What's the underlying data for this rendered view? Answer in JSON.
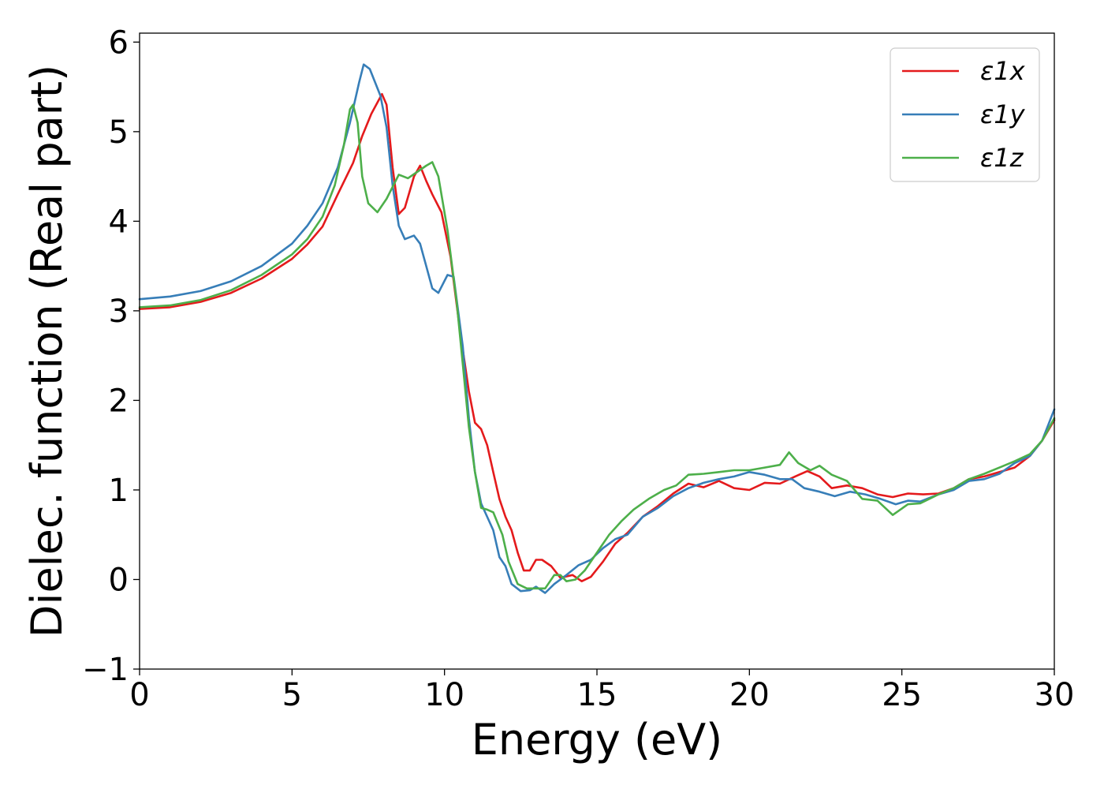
{
  "chart_data": {
    "type": "line",
    "title": "",
    "xlabel": "Energy (eV)",
    "ylabel": "Dielec. function (Real part)",
    "xlim": [
      0,
      30
    ],
    "ylim": [
      -1,
      6.1
    ],
    "xticks": [
      0,
      5,
      10,
      15,
      20,
      25,
      30
    ],
    "yticks": [
      -1,
      0,
      1,
      2,
      3,
      4,
      5,
      6
    ],
    "xtick_labels": [
      "0",
      "5",
      "10",
      "15",
      "20",
      "25",
      "30"
    ],
    "ytick_labels": [
      "−1",
      "0",
      "1",
      "2",
      "3",
      "4",
      "5",
      "6"
    ],
    "grid": false,
    "legend_position": "top-right",
    "series": [
      {
        "name": "ε1x",
        "color": "#e41a1c",
        "points": [
          [
            0,
            3.02
          ],
          [
            1,
            3.04
          ],
          [
            2,
            3.1
          ],
          [
            3,
            3.2
          ],
          [
            4,
            3.36
          ],
          [
            5,
            3.58
          ],
          [
            5.5,
            3.74
          ],
          [
            6,
            3.94
          ],
          [
            6.5,
            4.3
          ],
          [
            7,
            4.65
          ],
          [
            7.3,
            4.95
          ],
          [
            7.6,
            5.2
          ],
          [
            7.95,
            5.42
          ],
          [
            8.1,
            5.3
          ],
          [
            8.3,
            4.6
          ],
          [
            8.5,
            4.08
          ],
          [
            8.7,
            4.15
          ],
          [
            9.0,
            4.5
          ],
          [
            9.2,
            4.62
          ],
          [
            9.4,
            4.45
          ],
          [
            9.6,
            4.3
          ],
          [
            9.9,
            4.1
          ],
          [
            10.2,
            3.6
          ],
          [
            10.5,
            2.8
          ],
          [
            10.8,
            2.1
          ],
          [
            11.0,
            1.75
          ],
          [
            11.2,
            1.68
          ],
          [
            11.4,
            1.5
          ],
          [
            11.6,
            1.2
          ],
          [
            11.8,
            0.9
          ],
          [
            12.0,
            0.7
          ],
          [
            12.2,
            0.55
          ],
          [
            12.4,
            0.3
          ],
          [
            12.6,
            0.1
          ],
          [
            12.8,
            0.1
          ],
          [
            13.0,
            0.22
          ],
          [
            13.2,
            0.22
          ],
          [
            13.5,
            0.15
          ],
          [
            13.8,
            0.02
          ],
          [
            14.2,
            0.05
          ],
          [
            14.5,
            -0.02
          ],
          [
            14.8,
            0.03
          ],
          [
            15.2,
            0.2
          ],
          [
            15.6,
            0.4
          ],
          [
            16.0,
            0.52
          ],
          [
            16.5,
            0.7
          ],
          [
            17.0,
            0.82
          ],
          [
            17.5,
            0.96
          ],
          [
            18.0,
            1.07
          ],
          [
            18.5,
            1.03
          ],
          [
            19.0,
            1.1
          ],
          [
            19.5,
            1.02
          ],
          [
            20.0,
            1.0
          ],
          [
            20.5,
            1.08
          ],
          [
            21.0,
            1.07
          ],
          [
            21.5,
            1.15
          ],
          [
            21.9,
            1.21
          ],
          [
            22.3,
            1.15
          ],
          [
            22.7,
            1.02
          ],
          [
            23.2,
            1.05
          ],
          [
            23.7,
            1.02
          ],
          [
            24.2,
            0.95
          ],
          [
            24.7,
            0.92
          ],
          [
            25.2,
            0.96
          ],
          [
            25.7,
            0.95
          ],
          [
            26.2,
            0.96
          ],
          [
            26.7,
            1.02
          ],
          [
            27.2,
            1.12
          ],
          [
            27.7,
            1.15
          ],
          [
            28.2,
            1.2
          ],
          [
            28.7,
            1.25
          ],
          [
            29.2,
            1.38
          ],
          [
            29.6,
            1.55
          ],
          [
            30,
            1.78
          ]
        ]
      },
      {
        "name": "ε1y",
        "color": "#377eb8",
        "points": [
          [
            0,
            3.13
          ],
          [
            1,
            3.16
          ],
          [
            2,
            3.22
          ],
          [
            3,
            3.33
          ],
          [
            4,
            3.5
          ],
          [
            5,
            3.75
          ],
          [
            5.5,
            3.95
          ],
          [
            6,
            4.2
          ],
          [
            6.5,
            4.6
          ],
          [
            6.9,
            5.1
          ],
          [
            7.2,
            5.55
          ],
          [
            7.35,
            5.75
          ],
          [
            7.55,
            5.7
          ],
          [
            7.9,
            5.4
          ],
          [
            8.1,
            5.05
          ],
          [
            8.3,
            4.4
          ],
          [
            8.5,
            3.95
          ],
          [
            8.7,
            3.8
          ],
          [
            9.0,
            3.84
          ],
          [
            9.2,
            3.75
          ],
          [
            9.4,
            3.5
          ],
          [
            9.6,
            3.25
          ],
          [
            9.8,
            3.2
          ],
          [
            10.1,
            3.4
          ],
          [
            10.3,
            3.38
          ],
          [
            10.6,
            2.6
          ],
          [
            10.8,
            1.8
          ],
          [
            11.0,
            1.2
          ],
          [
            11.2,
            0.85
          ],
          [
            11.4,
            0.7
          ],
          [
            11.6,
            0.55
          ],
          [
            11.8,
            0.25
          ],
          [
            12.0,
            0.15
          ],
          [
            12.2,
            -0.05
          ],
          [
            12.5,
            -0.13
          ],
          [
            12.8,
            -0.12
          ],
          [
            13.0,
            -0.08
          ],
          [
            13.3,
            -0.15
          ],
          [
            13.6,
            -0.05
          ],
          [
            14.0,
            0.05
          ],
          [
            14.4,
            0.16
          ],
          [
            14.8,
            0.22
          ],
          [
            15.2,
            0.35
          ],
          [
            15.6,
            0.45
          ],
          [
            16.0,
            0.5
          ],
          [
            16.5,
            0.7
          ],
          [
            17.0,
            0.8
          ],
          [
            17.5,
            0.93
          ],
          [
            18.0,
            1.02
          ],
          [
            18.5,
            1.08
          ],
          [
            19.0,
            1.12
          ],
          [
            19.5,
            1.15
          ],
          [
            20.0,
            1.2
          ],
          [
            20.5,
            1.17
          ],
          [
            21.0,
            1.12
          ],
          [
            21.4,
            1.12
          ],
          [
            21.8,
            1.02
          ],
          [
            22.3,
            0.98
          ],
          [
            22.8,
            0.93
          ],
          [
            23.3,
            0.98
          ],
          [
            23.8,
            0.95
          ],
          [
            24.3,
            0.9
          ],
          [
            24.8,
            0.84
          ],
          [
            25.2,
            0.88
          ],
          [
            25.6,
            0.87
          ],
          [
            26.2,
            0.95
          ],
          [
            26.7,
            1.0
          ],
          [
            27.2,
            1.1
          ],
          [
            27.7,
            1.12
          ],
          [
            28.2,
            1.18
          ],
          [
            28.7,
            1.3
          ],
          [
            29.2,
            1.38
          ],
          [
            29.6,
            1.55
          ],
          [
            30,
            1.9
          ]
        ]
      },
      {
        "name": "ε1z",
        "color": "#4daf4a",
        "points": [
          [
            0,
            3.04
          ],
          [
            1,
            3.06
          ],
          [
            2,
            3.12
          ],
          [
            3,
            3.23
          ],
          [
            4,
            3.4
          ],
          [
            5,
            3.63
          ],
          [
            5.5,
            3.8
          ],
          [
            6,
            4.05
          ],
          [
            6.4,
            4.4
          ],
          [
            6.7,
            4.85
          ],
          [
            6.9,
            5.25
          ],
          [
            7.0,
            5.3
          ],
          [
            7.15,
            5.1
          ],
          [
            7.3,
            4.5
          ],
          [
            7.5,
            4.2
          ],
          [
            7.8,
            4.1
          ],
          [
            8.1,
            4.25
          ],
          [
            8.5,
            4.52
          ],
          [
            8.8,
            4.48
          ],
          [
            9.1,
            4.55
          ],
          [
            9.4,
            4.62
          ],
          [
            9.6,
            4.66
          ],
          [
            9.8,
            4.5
          ],
          [
            10.1,
            3.9
          ],
          [
            10.4,
            3.1
          ],
          [
            10.6,
            2.4
          ],
          [
            10.8,
            1.7
          ],
          [
            11.0,
            1.2
          ],
          [
            11.2,
            0.8
          ],
          [
            11.4,
            0.78
          ],
          [
            11.6,
            0.75
          ],
          [
            11.9,
            0.5
          ],
          [
            12.1,
            0.2
          ],
          [
            12.4,
            -0.05
          ],
          [
            12.7,
            -0.1
          ],
          [
            13.0,
            -0.1
          ],
          [
            13.3,
            -0.1
          ],
          [
            13.6,
            0.05
          ],
          [
            13.8,
            0.05
          ],
          [
            14.0,
            -0.02
          ],
          [
            14.3,
            0.0
          ],
          [
            14.6,
            0.1
          ],
          [
            15.0,
            0.3
          ],
          [
            15.4,
            0.5
          ],
          [
            15.8,
            0.65
          ],
          [
            16.2,
            0.78
          ],
          [
            16.7,
            0.9
          ],
          [
            17.2,
            1.0
          ],
          [
            17.6,
            1.05
          ],
          [
            18.0,
            1.17
          ],
          [
            18.5,
            1.18
          ],
          [
            19.0,
            1.2
          ],
          [
            19.5,
            1.22
          ],
          [
            20.0,
            1.22
          ],
          [
            20.5,
            1.25
          ],
          [
            21.0,
            1.28
          ],
          [
            21.3,
            1.42
          ],
          [
            21.6,
            1.3
          ],
          [
            22.0,
            1.22
          ],
          [
            22.3,
            1.27
          ],
          [
            22.7,
            1.17
          ],
          [
            23.2,
            1.1
          ],
          [
            23.7,
            0.9
          ],
          [
            24.2,
            0.88
          ],
          [
            24.7,
            0.72
          ],
          [
            25.2,
            0.84
          ],
          [
            25.6,
            0.85
          ],
          [
            26.2,
            0.95
          ],
          [
            26.7,
            1.02
          ],
          [
            27.2,
            1.12
          ],
          [
            27.7,
            1.18
          ],
          [
            28.2,
            1.25
          ],
          [
            28.7,
            1.32
          ],
          [
            29.2,
            1.4
          ],
          [
            29.6,
            1.55
          ],
          [
            30,
            1.8
          ]
        ]
      }
    ]
  }
}
